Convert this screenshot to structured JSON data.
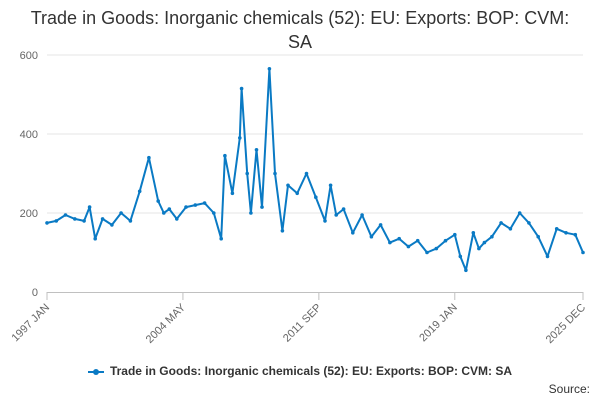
{
  "chart_data": {
    "type": "line",
    "title": "Trade in Goods: Inorganic chemicals (52): EU: Exports: BOP: CVM: SA",
    "xlabel": "",
    "ylabel": "",
    "ylim": [
      0,
      600
    ],
    "yticks": [
      0,
      200,
      400,
      600
    ],
    "xlim": [
      1997.0,
      2025.917
    ],
    "xticks": [
      {
        "label": "1997 JAN",
        "x": 1997.0
      },
      {
        "label": "2004 MAY",
        "x": 2004.333
      },
      {
        "label": "2011 SEP",
        "x": 2011.667
      },
      {
        "label": "2019 JAN",
        "x": 2019.0
      },
      {
        "label": "2025 DEC",
        "x": 2025.917
      }
    ],
    "series": [
      {
        "name": "Trade in Goods: Inorganic chemicals (52): EU: Exports: BOP: CVM: SA",
        "color": "#0a7ac4",
        "x": [
          1997.0,
          1997.5,
          1998.0,
          1998.5,
          1999.0,
          1999.3,
          1999.6,
          2000.0,
          2000.5,
          2001.0,
          2001.5,
          2002.0,
          2002.5,
          2003.0,
          2003.3,
          2003.6,
          2004.0,
          2004.5,
          2005.0,
          2005.5,
          2006.0,
          2006.4,
          2006.6,
          2007.0,
          2007.4,
          2007.5,
          2007.8,
          2008.0,
          2008.3,
          2008.6,
          2009.0,
          2009.3,
          2009.7,
          2010.0,
          2010.5,
          2011.0,
          2011.5,
          2012.0,
          2012.3,
          2012.6,
          2013.0,
          2013.5,
          2014.0,
          2014.5,
          2015.0,
          2015.5,
          2016.0,
          2016.5,
          2017.0,
          2017.5,
          2018.0,
          2018.5,
          2019.0,
          2019.3,
          2019.6,
          2020.0,
          2020.3,
          2020.6,
          2021.0,
          2021.5,
          2022.0,
          2022.5,
          2023.0,
          2023.5,
          2024.0,
          2024.5,
          2025.0,
          2025.5,
          2025.917
        ],
        "values": [
          175,
          180,
          195,
          185,
          180,
          215,
          135,
          185,
          170,
          200,
          180,
          255,
          340,
          230,
          200,
          210,
          185,
          215,
          220,
          225,
          200,
          135,
          345,
          250,
          390,
          515,
          300,
          200,
          360,
          215,
          565,
          300,
          155,
          270,
          250,
          300,
          240,
          180,
          270,
          195,
          210,
          150,
          195,
          140,
          170,
          125,
          135,
          115,
          130,
          100,
          110,
          130,
          145,
          90,
          55,
          150,
          110,
          125,
          140,
          175,
          160,
          200,
          175,
          140,
          90,
          160,
          150,
          145,
          100
        ]
      }
    ]
  },
  "legend": {
    "label": "Trade in Goods: Inorganic chemicals (52): EU: Exports: BOP: CVM: SA"
  },
  "source": {
    "label": "Source:"
  }
}
